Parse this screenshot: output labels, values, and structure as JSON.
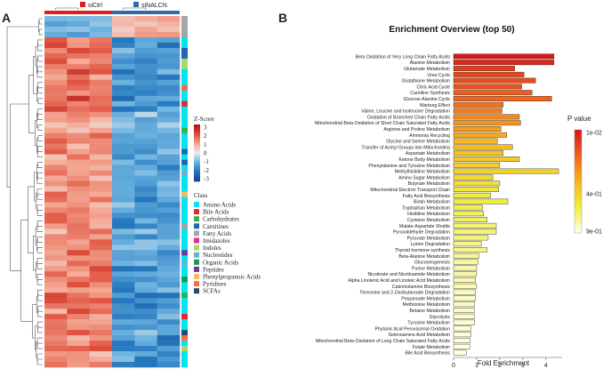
{
  "panel_labels": {
    "a": "A",
    "b": "B"
  },
  "chart_data": [
    {
      "type": "heatmap",
      "groups": [
        {
          "name": "siCtrl",
          "color": "#e41a1c"
        },
        {
          "name": "siNALCN",
          "color": "#2b6cb0"
        }
      ],
      "n_rows": 66,
      "n_cols": 6,
      "legend": {
        "title": "Z-Score",
        "ticks": [
          "3",
          "2",
          "1",
          "0",
          "-1",
          "-2",
          "-3"
        ],
        "range": [
          -3,
          3
        ]
      },
      "class_legend": {
        "title": "Class",
        "items": [
          {
            "name": "Amino Acids",
            "color": "#00e5ee"
          },
          {
            "name": "Bile Acids",
            "color": "#e8262b"
          },
          {
            "name": "Carbohydrates",
            "color": "#34b24a"
          },
          {
            "name": "Carnitines",
            "color": "#2166ac"
          },
          {
            "name": "Fatty Acids",
            "color": "#a6a6a6"
          },
          {
            "name": "Imidazoles",
            "color": "#ec2b8c"
          },
          {
            "name": "Indoles",
            "color": "#a6d96a"
          },
          {
            "name": "Nucleotides",
            "color": "#74add1"
          },
          {
            "name": "Organic Acids",
            "color": "#1a9850"
          },
          {
            "name": "Peptides",
            "color": "#6a3d9a"
          },
          {
            "name": "Phenylpropanoic Acids",
            "color": "#fdb863"
          },
          {
            "name": "Pyridines",
            "color": "#f46d43"
          },
          {
            "name": "SCFAs",
            "color": "#2c4a6e"
          }
        ]
      }
    },
    {
      "type": "bar",
      "orientation": "horizontal",
      "title": "Enrichment Overview (top 50)",
      "xlabel": "Fold Enrichment",
      "xlim": [
        0,
        4.7
      ],
      "xticks": [
        0,
        1,
        2,
        3,
        4
      ],
      "color_scale": {
        "title": "P value",
        "labels": [
          "1e-02",
          "4e-01",
          "9e-01"
        ]
      },
      "categories": [
        "Beta Oxidation of Very Long Chain Fatty Acids",
        "Alanine Metabolism",
        "Glutamate Metabolism",
        "Urea Cycle",
        "Glutathione Metabolism",
        "Citric Acid Cycle",
        "Carnitine Synthesis",
        "Glucose-Alanine Cycle",
        "Warburg Effect",
        "Valine, Leucine and Isoleucine Degradation",
        "Oxidation of Branched Chain Fatty Acids",
        "Mitochondrial Beta-Oxidation of Short Chain Saturated Fatty Acids",
        "Arginine and Proline Metabolism",
        "Ammonia Recycling",
        "Glycine and Serine Metabolism",
        "Transfer of Acetyl Groups into Mitochondria",
        "Aspartate Metabolism",
        "Ketone Body Metabolism",
        "Phenylalanine and Tyrosine Metabolism",
        "Methylhistidine Metabolism",
        "Amino Sugar Metabolism",
        "Butyrate Metabolism",
        "Mitochondrial Electron Transport Chain",
        "Fatty Acid Biosynthesis",
        "Biotin Metabolism",
        "Tryptophan Metabolism",
        "Histidine Metabolism",
        "Cysteine Metabolism",
        "Malate-Aspartate Shuttle",
        "Pyruvaldehyde Degradation",
        "Pyruvate Metabolism",
        "Lysine Degradation",
        "Thyroid hormone synthesis",
        "Beta-Alanine Metabolism",
        "Gluconeogenesis",
        "Purine Metabolism",
        "Nicotinate and Nicotinamide Metabolism",
        "Alpha Linolenic Acid and Linoleic Acid Metabolism",
        "Catecholamine Biosynthesis",
        "Threonine and 2-Oxobutanoate Degradation",
        "Propanoate Metabolism",
        "Methionine Metabolism",
        "Betaine Metabolism",
        "Glycolysis",
        "Tyrosine Metabolism",
        "Phytanic Acid Peroxisomal Oxidation",
        "Selenoamino Acid Metabolism",
        "Mitochondrial Beta-Oxidation of Long Chain Saturated Fatty Acids",
        "Folate Metabolism",
        "Bile Acid Biosynthesis"
      ],
      "values": [
        4.35,
        4.35,
        2.65,
        3.05,
        3.55,
        2.95,
        3.4,
        4.25,
        2.15,
        2.1,
        2.85,
        2.9,
        2.05,
        2.3,
        1.9,
        2.55,
        2.15,
        2.85,
        2.0,
        4.55,
        1.7,
        2.0,
        1.95,
        1.6,
        2.35,
        1.25,
        1.3,
        1.45,
        1.85,
        1.85,
        1.5,
        1.2,
        1.45,
        1.1,
        1.05,
        1.0,
        1.0,
        0.95,
        1.0,
        0.95,
        0.95,
        0.9,
        0.9,
        0.9,
        0.9,
        0.75,
        0.75,
        0.7,
        0.7,
        0.55
      ],
      "p_values": [
        0.003,
        0.004,
        0.006,
        0.007,
        0.008,
        0.009,
        0.011,
        0.013,
        0.016,
        0.02,
        0.025,
        0.03,
        0.035,
        0.045,
        0.055,
        0.065,
        0.075,
        0.085,
        0.1,
        0.11,
        0.13,
        0.16,
        0.19,
        0.21,
        0.22,
        0.26,
        0.29,
        0.3,
        0.33,
        0.36,
        0.38,
        0.42,
        0.44,
        0.48,
        0.52,
        0.55,
        0.58,
        0.61,
        0.64,
        0.66,
        0.69,
        0.72,
        0.74,
        0.77,
        0.8,
        0.83,
        0.86,
        0.88,
        0.9,
        0.92
      ]
    }
  ]
}
